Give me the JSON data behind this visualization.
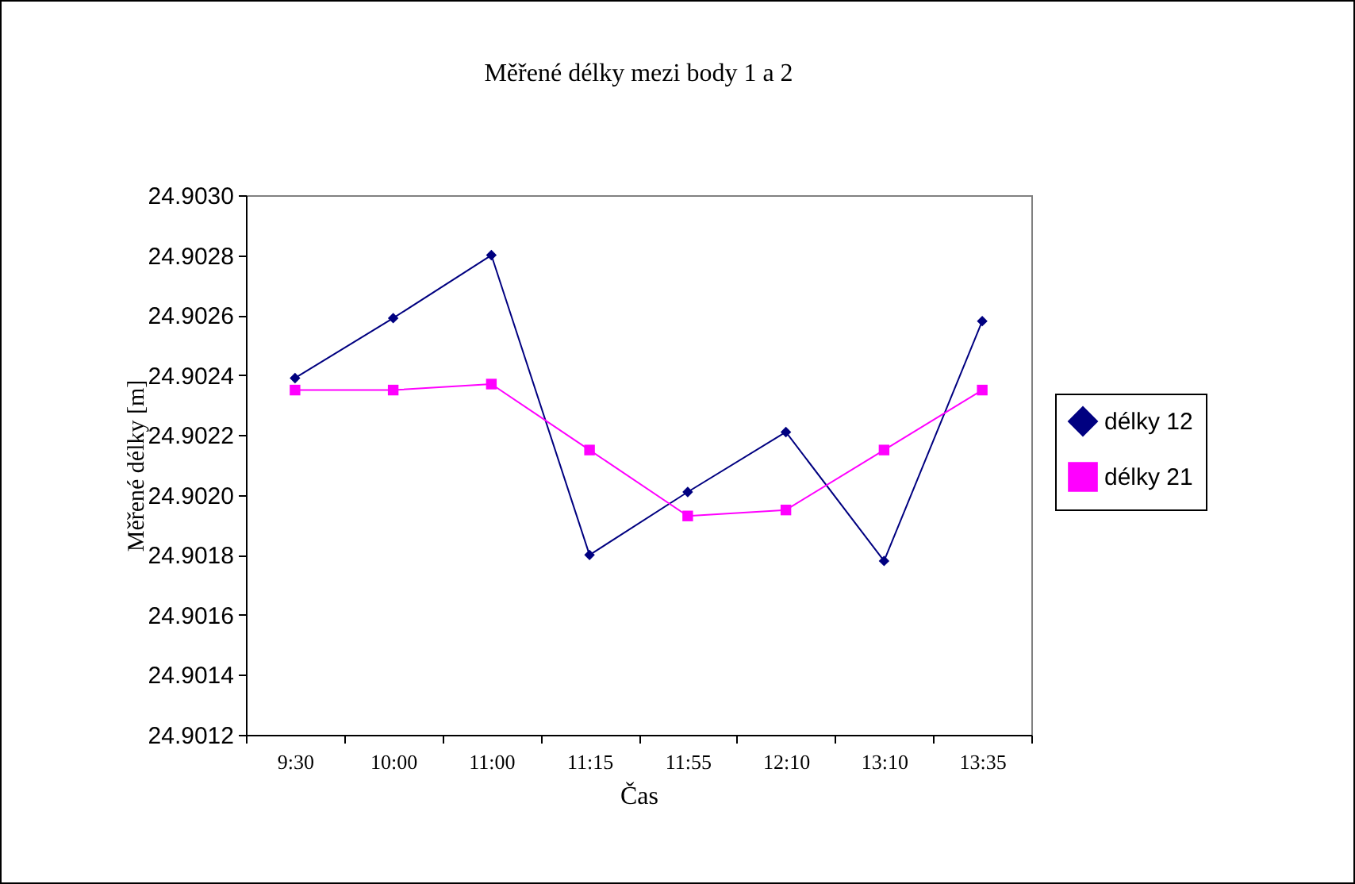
{
  "chart_data": {
    "type": "line",
    "title": "Měřené délky mezi body 1 a 2",
    "xlabel": "Čas",
    "ylabel": "Měřené délky [m]",
    "categories": [
      "9:30",
      "10:00",
      "11:00",
      "11:15",
      "11:55",
      "12:10",
      "13:10",
      "13:35"
    ],
    "series": [
      {
        "name": "délky 12",
        "color": "#000080",
        "marker": "diamond",
        "values": [
          24.90239,
          24.90259,
          24.9028,
          24.9018,
          24.90201,
          24.90221,
          24.90178,
          24.90258
        ]
      },
      {
        "name": "délky 21",
        "color": "#ff00ff",
        "marker": "square",
        "values": [
          24.90235,
          24.90235,
          24.90237,
          24.90215,
          24.90193,
          24.90195,
          24.90215,
          24.90235
        ]
      }
    ],
    "ylim": [
      24.9012,
      24.903
    ],
    "yticks": [
      {
        "value": 24.9012,
        "label": "24.9012"
      },
      {
        "value": 24.9014,
        "label": "24.9014"
      },
      {
        "value": 24.9016,
        "label": "24.9016"
      },
      {
        "value": 24.9018,
        "label": "24.9018"
      },
      {
        "value": 24.902,
        "label": "24.9020"
      },
      {
        "value": 24.9022,
        "label": "24.9022"
      },
      {
        "value": 24.9024,
        "label": "24.9024"
      },
      {
        "value": 24.9026,
        "label": "24.9026"
      },
      {
        "value": 24.9028,
        "label": "24.9028"
      },
      {
        "value": 24.903,
        "label": "24.9030"
      }
    ],
    "grid": false,
    "legend": "right",
    "line_style": "solid"
  }
}
